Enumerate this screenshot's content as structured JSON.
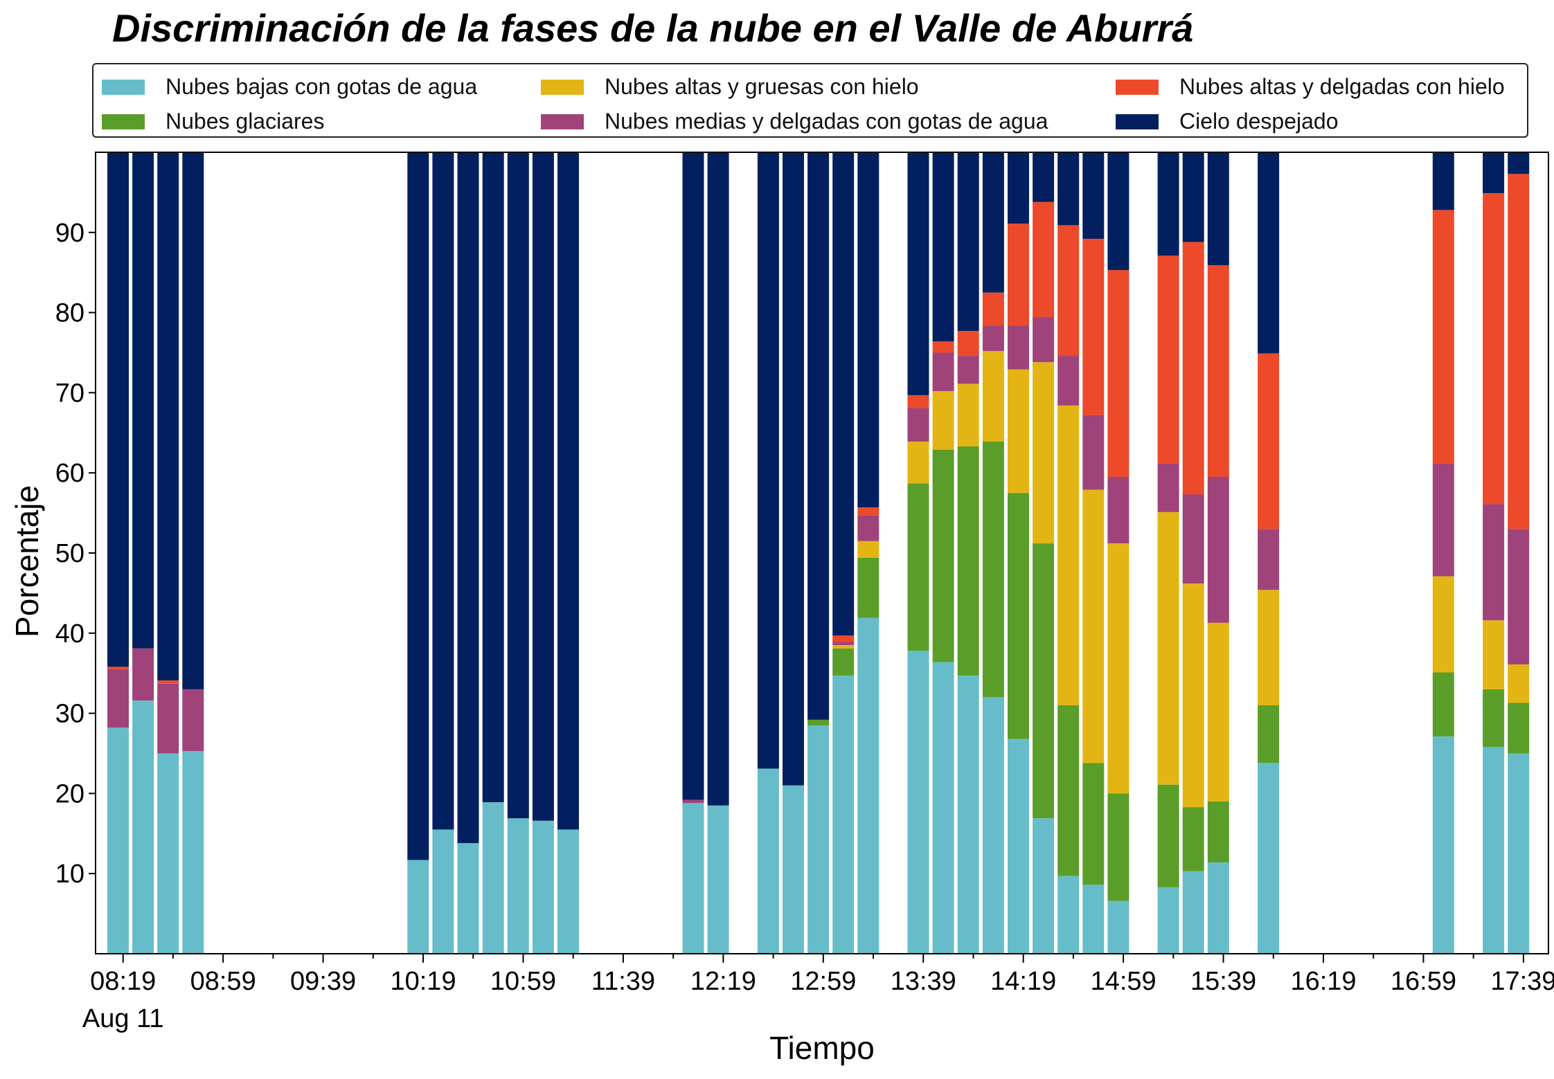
{
  "chart_data": {
    "type": "bar",
    "stacked": true,
    "title": "Discriminación de la fases de la nube en el Valle de Aburrá",
    "xlabel": "Tiempo",
    "ylabel": "Porcentaje",
    "ylim": [
      0,
      100
    ],
    "yticks": [
      10,
      20,
      30,
      40,
      50,
      60,
      70,
      80,
      90
    ],
    "x_range_minutes": [
      488,
      1069
    ],
    "xticks": [
      {
        "minute": 499,
        "label": "08:19"
      },
      {
        "minute": 539,
        "label": "08:59"
      },
      {
        "minute": 579,
        "label": "09:39"
      },
      {
        "minute": 619,
        "label": "10:19"
      },
      {
        "minute": 659,
        "label": "10:59"
      },
      {
        "minute": 699,
        "label": "11:39"
      },
      {
        "minute": 739,
        "label": "12:19"
      },
      {
        "minute": 779,
        "label": "12:59"
      },
      {
        "minute": 819,
        "label": "13:39"
      },
      {
        "minute": 859,
        "label": "14:19"
      },
      {
        "minute": 899,
        "label": "14:59"
      },
      {
        "minute": 939,
        "label": "15:39"
      },
      {
        "minute": 979,
        "label": "16:19"
      },
      {
        "minute": 1019,
        "label": "16:59"
      },
      {
        "minute": 1059,
        "label": "17:39"
      }
    ],
    "date_label": "Aug 11",
    "grid": false,
    "legend_position": "top",
    "series": [
      {
        "name": "Nubes bajas con gotas de agua",
        "color": "#66BDC9"
      },
      {
        "name": "Nubes glaciares",
        "color": "#5A9E29"
      },
      {
        "name": "Nubes altas y gruesas con hielo",
        "color": "#E3B514"
      },
      {
        "name": "Nubes medias y delgadas con gotas de agua",
        "color": "#A0437A"
      },
      {
        "name": "Nubes altas y delgadas con hielo",
        "color": "#EC4A2B"
      },
      {
        "name": "Cielo despejado",
        "color": "#02205F"
      }
    ],
    "times": [
      "08:17",
      "08:27",
      "08:37",
      "08:47",
      "10:17",
      "10:27",
      "10:37",
      "10:47",
      "10:57",
      "11:07",
      "11:17",
      "12:07",
      "12:17",
      "12:37",
      "12:47",
      "12:57",
      "13:07",
      "13:17",
      "13:37",
      "13:47",
      "13:57",
      "14:07",
      "14:17",
      "14:27",
      "14:37",
      "14:47",
      "14:57",
      "15:17",
      "15:27",
      "15:37",
      "15:57",
      "17:07",
      "17:27",
      "17:37"
    ],
    "values": [
      [
        28.2,
        0,
        0,
        7.3,
        0.3,
        64.2
      ],
      [
        31.6,
        0,
        0,
        6.5,
        0,
        61.9
      ],
      [
        25.0,
        0,
        0,
        8.7,
        0.4,
        65.9
      ],
      [
        25.3,
        0,
        0,
        7.7,
        0,
        67.0
      ],
      [
        11.7,
        0,
        0,
        0,
        0,
        88.3
      ],
      [
        15.5,
        0,
        0,
        0,
        0,
        84.5
      ],
      [
        13.8,
        0,
        0,
        0,
        0,
        86.2
      ],
      [
        18.9,
        0,
        0,
        0,
        0,
        81.1
      ],
      [
        16.9,
        0,
        0,
        0,
        0,
        83.1
      ],
      [
        16.6,
        0,
        0,
        0,
        0,
        83.4
      ],
      [
        15.5,
        0,
        0,
        0,
        0,
        84.5
      ],
      [
        18.8,
        0,
        0,
        0.4,
        0,
        80.8
      ],
      [
        18.5,
        0,
        0,
        0,
        0,
        81.5
      ],
      [
        23.1,
        0,
        0,
        0,
        0,
        76.9
      ],
      [
        21.0,
        0,
        0,
        0,
        0,
        79.0
      ],
      [
        28.5,
        0.7,
        0,
        0,
        0,
        70.8
      ],
      [
        34.7,
        3.4,
        0.4,
        0.4,
        0.8,
        60.3
      ],
      [
        41.9,
        7.5,
        2.1,
        3.2,
        1.0,
        44.3
      ],
      [
        37.8,
        20.9,
        5.2,
        4.2,
        1.6,
        30.3
      ],
      [
        36.4,
        26.5,
        7.3,
        4.8,
        1.4,
        23.6
      ],
      [
        34.7,
        28.6,
        7.8,
        3.5,
        3.1,
        22.3
      ],
      [
        32.0,
        31.9,
        11.3,
        3.2,
        4.1,
        17.5
      ],
      [
        26.8,
        30.7,
        15.4,
        5.5,
        12.7,
        8.9
      ],
      [
        16.9,
        34.3,
        22.6,
        5.6,
        14.4,
        6.2
      ],
      [
        9.7,
        21.3,
        37.4,
        6.2,
        16.3,
        9.1
      ],
      [
        8.6,
        15.2,
        34.1,
        9.3,
        22.0,
        10.8
      ],
      [
        6.6,
        13.4,
        31.2,
        8.3,
        25.8,
        14.7
      ],
      [
        8.3,
        12.8,
        34.0,
        6.1,
        25.9,
        12.9
      ],
      [
        10.3,
        8.0,
        27.9,
        11.1,
        31.5,
        11.2
      ],
      [
        11.4,
        7.6,
        22.3,
        18.2,
        26.4,
        14.1
      ],
      [
        23.8,
        7.2,
        14.4,
        7.6,
        21.9,
        25.1
      ],
      [
        27.1,
        8.0,
        12.0,
        14.1,
        31.6,
        7.2
      ],
      [
        25.8,
        7.2,
        8.6,
        14.5,
        38.8,
        5.1
      ],
      [
        25.0,
        6.3,
        4.8,
        16.9,
        44.3,
        2.7
      ]
    ]
  }
}
